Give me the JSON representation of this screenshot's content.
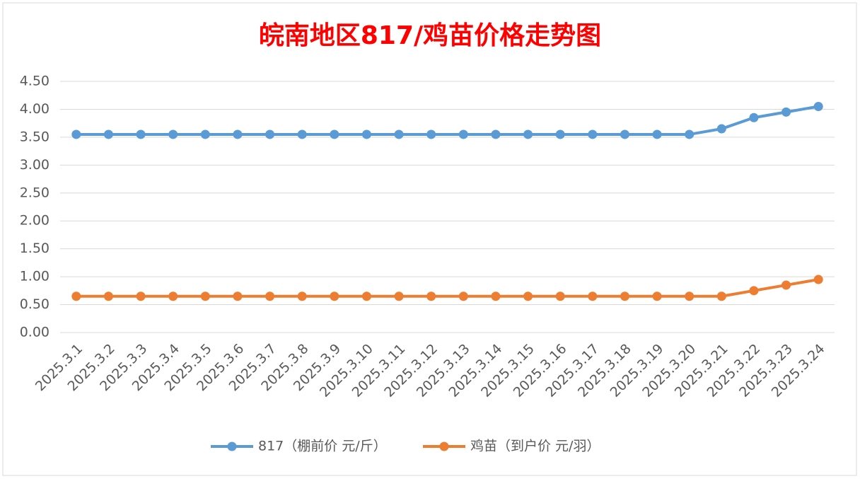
{
  "chart_data": {
    "type": "line",
    "title": "皖南地区817/鸡苗价格走势图",
    "categories": [
      "2025.3.1",
      "2025.3.2",
      "2025.3.3",
      "2025.3.4",
      "2025.3.5",
      "2025.3.6",
      "2025.3.7",
      "2025.3.8",
      "2025.3.9",
      "2025.3.10",
      "2025.3.11",
      "2025.3.12",
      "2025.3.13",
      "2025.3.14",
      "2025.3.15",
      "2025.3.16",
      "2025.3.17",
      "2025.3.18",
      "2025.3.19",
      "2025.3.20",
      "2025.3.21",
      "2025.3.22",
      "2025.3.23",
      "2025.3.24"
    ],
    "series": [
      {
        "name": "817（棚前价 元/斤）",
        "color": "#5b9bd5",
        "values": [
          3.55,
          3.55,
          3.55,
          3.55,
          3.55,
          3.55,
          3.55,
          3.55,
          3.55,
          3.55,
          3.55,
          3.55,
          3.55,
          3.55,
          3.55,
          3.55,
          3.55,
          3.55,
          3.55,
          3.55,
          3.65,
          3.85,
          3.95,
          4.05
        ]
      },
      {
        "name": "鸡苗（到户价 元/羽）",
        "color": "#ed7d31",
        "values": [
          0.65,
          0.65,
          0.65,
          0.65,
          0.65,
          0.65,
          0.65,
          0.65,
          0.65,
          0.65,
          0.65,
          0.65,
          0.65,
          0.65,
          0.65,
          0.65,
          0.65,
          0.65,
          0.65,
          0.65,
          0.65,
          0.75,
          0.85,
          0.95
        ]
      }
    ],
    "ylim": [
      0,
      4.5
    ],
    "yticks": [
      {
        "value": 0,
        "label": "0.00"
      },
      {
        "value": 0.5,
        "label": "0.50"
      },
      {
        "value": 1,
        "label": "1.00"
      },
      {
        "value": 1.5,
        "label": "1.50"
      },
      {
        "value": 2,
        "label": "2.00"
      },
      {
        "value": 2.5,
        "label": "2.50"
      },
      {
        "value": 3,
        "label": "3.00"
      },
      {
        "value": 3.5,
        "label": "3.50"
      },
      {
        "value": 4,
        "label": "4.00"
      },
      {
        "value": 4.5,
        "label": "4.50"
      }
    ],
    "grid": true,
    "legend": "bottom"
  }
}
